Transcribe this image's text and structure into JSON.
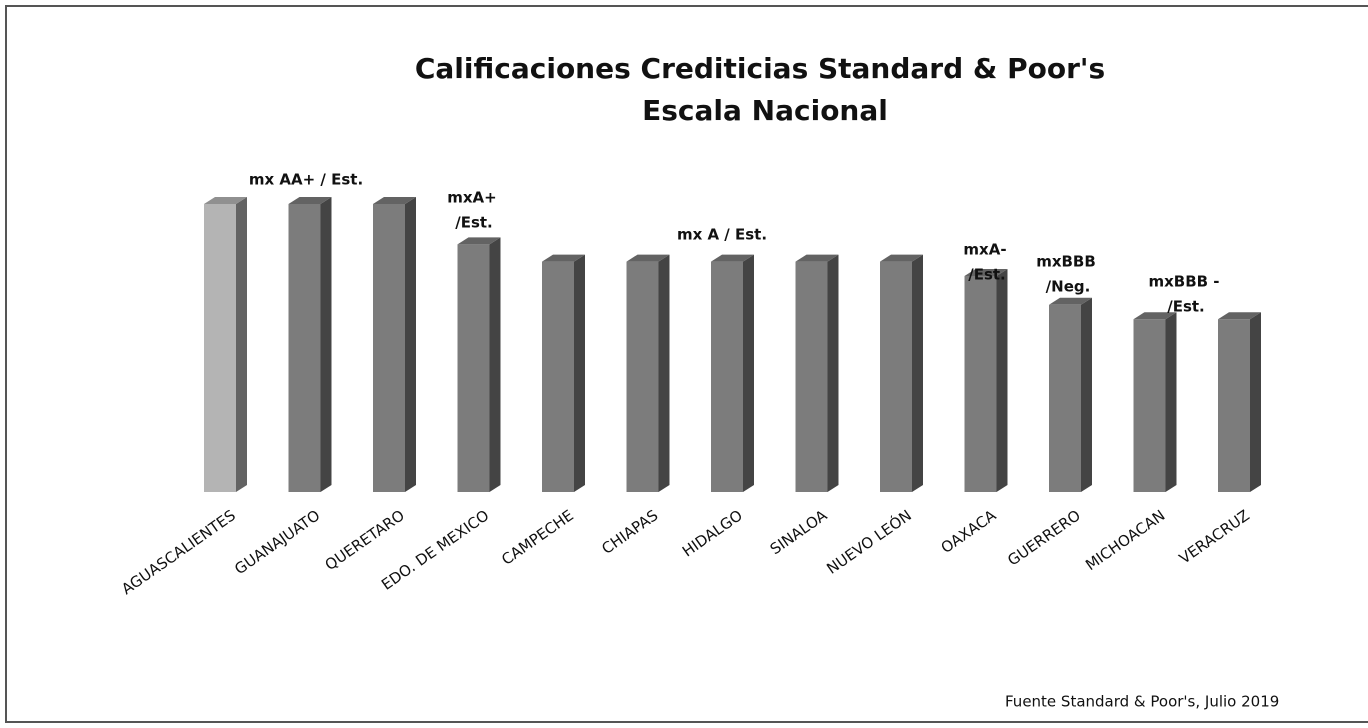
{
  "chart_data": {
    "type": "bar3d",
    "title": "Calificaciones Crediticias Standard & Poor's",
    "subtitle": "Escala Nacional",
    "categories": [
      "AGUASCALIENTES",
      "GUANAJUATO",
      "QUERETARO",
      "EDO. DE MEXICO",
      "CAMPECHE",
      "CHIAPAS",
      "HIDALGO",
      "SINALOA",
      "NUEVO LEÓN",
      "OAXACA",
      "GUERRERO",
      "MICHOACAN",
      "VERACRUZ"
    ],
    "values": [
      100,
      100,
      100,
      86,
      80,
      80,
      80,
      80,
      80,
      75,
      65,
      60,
      60
    ],
    "colors": [
      "#b4b4b4",
      "#7c7c7c",
      "#7c7c7c",
      "#7c7c7c",
      "#7c7c7c",
      "#7c7c7c",
      "#7c7c7c",
      "#7c7c7c",
      "#7c7c7c",
      "#7c7c7c",
      "#7c7c7c",
      "#7c7c7c",
      "#7c7c7c"
    ],
    "ylim": [
      0,
      100
    ],
    "annotations": [
      [
        "mx AA+ / Est."
      ],
      [
        "mxA+",
        "/Est."
      ],
      [
        "mx A / Est."
      ],
      [
        "mxA-",
        "/Est."
      ],
      [
        "mxBBB",
        "/Neg."
      ],
      [
        "mxBBB -",
        "/Est."
      ]
    ],
    "source": "Fuente Standard & Poor's, Julio 2019"
  }
}
